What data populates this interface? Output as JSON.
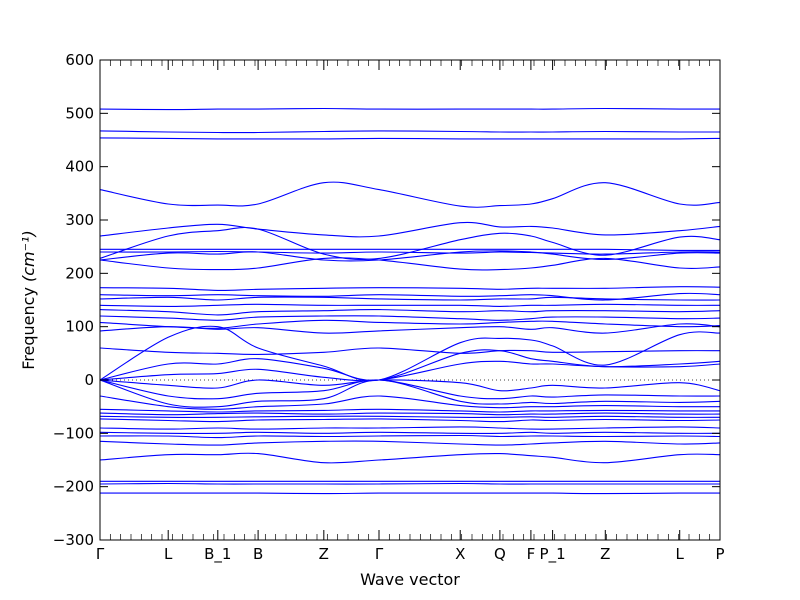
{
  "chart_data": {
    "type": "line",
    "xlabel": "Wave vector",
    "ylabel": "Frequency",
    "ylabel_unit": "(cm⁻¹)",
    "ylim": [
      -300,
      600
    ],
    "yticks": [
      -300,
      -200,
      -100,
      0,
      100,
      200,
      300,
      400,
      500,
      600
    ],
    "xlim": [
      0,
      1
    ],
    "x_ticks": [
      {
        "label": "Γ",
        "pos": 0.0
      },
      {
        "label": "L",
        "pos": 0.11
      },
      {
        "label": "B_1",
        "pos": 0.19
      },
      {
        "label": "B",
        "pos": 0.255
      },
      {
        "label": "Z",
        "pos": 0.361
      },
      {
        "label": "Γ",
        "pos": 0.45
      },
      {
        "label": "X",
        "pos": 0.581
      },
      {
        "label": "Q",
        "pos": 0.645
      },
      {
        "label": "F",
        "pos": 0.695
      },
      {
        "label": "P_1",
        "pos": 0.73
      },
      {
        "label": "Z",
        "pos": 0.815
      },
      {
        "label": "L",
        "pos": 0.935
      },
      {
        "label": "P",
        "pos": 1.0
      }
    ],
    "zero_line": "dotted",
    "line_color": "#0000ff",
    "series": [
      {
        "x": [
          0,
          0.11,
          0.19,
          0.255,
          0.361,
          0.45,
          0.581,
          0.645,
          0.695,
          0.73,
          0.815,
          0.935,
          1.0
        ],
        "y": [
          508,
          507,
          508,
          508,
          509,
          508,
          508,
          508,
          508,
          508,
          509,
          508,
          508
        ]
      },
      {
        "x": [
          0,
          0.11,
          0.19,
          0.255,
          0.361,
          0.45,
          0.581,
          0.645,
          0.695,
          0.73,
          0.815,
          0.935,
          1.0
        ],
        "y": [
          467,
          465,
          464,
          464,
          466,
          467,
          466,
          465,
          465,
          465,
          466,
          465,
          465
        ]
      },
      {
        "x": [
          0,
          0.11,
          0.19,
          0.255,
          0.361,
          0.45,
          0.581,
          0.645,
          0.695,
          0.73,
          0.815,
          0.935,
          1.0
        ],
        "y": [
          454,
          453,
          452,
          452,
          452,
          453,
          452,
          452,
          452,
          452,
          452,
          452,
          453
        ]
      },
      {
        "x": [
          0,
          0.11,
          0.19,
          0.255,
          0.361,
          0.45,
          0.581,
          0.645,
          0.695,
          0.73,
          0.815,
          0.935,
          1.0
        ],
        "y": [
          357,
          330,
          328,
          330,
          370,
          357,
          326,
          327,
          330,
          340,
          370,
          330,
          333
        ]
      },
      {
        "x": [
          0,
          0.11,
          0.19,
          0.255,
          0.361,
          0.45,
          0.581,
          0.645,
          0.695,
          0.73,
          0.815,
          0.935,
          1.0
        ],
        "y": [
          270,
          285,
          292,
          283,
          272,
          270,
          295,
          287,
          288,
          285,
          272,
          280,
          288
        ]
      },
      {
        "x": [
          0,
          0.11,
          0.19,
          0.255,
          0.361,
          0.45,
          0.581,
          0.645,
          0.695,
          0.73,
          0.815,
          0.935,
          1.0
        ],
        "y": [
          228,
          270,
          280,
          283,
          236,
          228,
          263,
          275,
          270,
          258,
          234,
          268,
          263
        ]
      },
      {
        "x": [
          0,
          0.11,
          0.19,
          0.255,
          0.361,
          0.45,
          0.581,
          0.645,
          0.695,
          0.73,
          0.815,
          0.935,
          1.0
        ],
        "y": [
          245,
          245,
          245,
          245,
          245,
          245,
          245,
          245,
          245,
          245,
          245,
          243,
          243
        ]
      },
      {
        "x": [
          0,
          0.11,
          0.19,
          0.255,
          0.361,
          0.45,
          0.581,
          0.645,
          0.695,
          0.73,
          0.815,
          0.935,
          1.0
        ],
        "y": [
          240,
          240,
          241,
          240,
          238,
          240,
          238,
          240,
          239,
          238,
          236,
          240,
          240
        ]
      },
      {
        "x": [
          0,
          0.11,
          0.19,
          0.255,
          0.361,
          0.45,
          0.581,
          0.645,
          0.695,
          0.73,
          0.815,
          0.935,
          1.0
        ],
        "y": [
          225,
          238,
          236,
          240,
          225,
          225,
          240,
          242,
          240,
          236,
          226,
          238,
          238
        ]
      },
      {
        "x": [
          0,
          0.11,
          0.19,
          0.255,
          0.361,
          0.45,
          0.581,
          0.645,
          0.695,
          0.73,
          0.815,
          0.935,
          1.0
        ],
        "y": [
          225,
          210,
          207,
          210,
          228,
          225,
          208,
          207,
          210,
          215,
          228,
          210,
          212
        ]
      },
      {
        "x": [
          0,
          0.11,
          0.19,
          0.255,
          0.361,
          0.45,
          0.581,
          0.645,
          0.695,
          0.73,
          0.815,
          0.935,
          1.0
        ],
        "y": [
          173,
          172,
          168,
          170,
          172,
          173,
          172,
          170,
          172,
          172,
          172,
          175,
          174
        ]
      },
      {
        "x": [
          0,
          0.11,
          0.19,
          0.255,
          0.361,
          0.45,
          0.581,
          0.645,
          0.695,
          0.73,
          0.815,
          0.935,
          1.0
        ],
        "y": [
          160,
          158,
          160,
          158,
          157,
          160,
          157,
          158,
          160,
          158,
          150,
          162,
          160
        ]
      },
      {
        "x": [
          0,
          0.11,
          0.19,
          0.255,
          0.361,
          0.45,
          0.581,
          0.645,
          0.695,
          0.73,
          0.815,
          0.935,
          1.0
        ],
        "y": [
          152,
          155,
          150,
          155,
          155,
          152,
          150,
          152,
          152,
          155,
          152,
          150,
          150
        ]
      },
      {
        "x": [
          0,
          0.11,
          0.19,
          0.255,
          0.361,
          0.45,
          0.581,
          0.645,
          0.695,
          0.73,
          0.815,
          0.935,
          1.0
        ],
        "y": [
          140,
          138,
          140,
          142,
          140,
          140,
          140,
          138,
          140,
          140,
          142,
          140,
          140
        ]
      },
      {
        "x": [
          0,
          0.11,
          0.19,
          0.255,
          0.361,
          0.45,
          0.581,
          0.645,
          0.695,
          0.73,
          0.815,
          0.935,
          1.0
        ],
        "y": [
          132,
          128,
          122,
          128,
          130,
          132,
          128,
          130,
          128,
          130,
          130,
          128,
          130
        ]
      },
      {
        "x": [
          0,
          0.11,
          0.19,
          0.255,
          0.361,
          0.45,
          0.581,
          0.645,
          0.695,
          0.73,
          0.815,
          0.935,
          1.0
        ],
        "y": [
          120,
          116,
          112,
          118,
          120,
          120,
          115,
          112,
          115,
          118,
          118,
          115,
          116
        ]
      },
      {
        "x": [
          0,
          0.11,
          0.19,
          0.255,
          0.361,
          0.45,
          0.581,
          0.645,
          0.695,
          0.73,
          0.815,
          0.935,
          1.0
        ],
        "y": [
          108,
          100,
          97,
          105,
          112,
          108,
          105,
          108,
          110,
          110,
          105,
          100,
          102
        ]
      },
      {
        "x": [
          0,
          0.11,
          0.19,
          0.255,
          0.361,
          0.45,
          0.581,
          0.645,
          0.695,
          0.73,
          0.815,
          0.935,
          1.0
        ],
        "y": [
          92,
          100,
          95,
          98,
          88,
          92,
          98,
          100,
          95,
          98,
          88,
          105,
          100
        ]
      },
      {
        "x": [
          0,
          0.11,
          0.19,
          0.255,
          0.361,
          0.45,
          0.581,
          0.645,
          0.695,
          0.73,
          0.815,
          0.935,
          1.0
        ],
        "y": [
          60,
          52,
          50,
          48,
          52,
          60,
          50,
          55,
          55,
          52,
          53,
          55,
          55
        ]
      },
      {
        "x": [
          0,
          0.11,
          0.19,
          0.255,
          0.361,
          0.45,
          0.581,
          0.645,
          0.695,
          0.73,
          0.815,
          0.935,
          1.0
        ],
        "y": [
          0,
          80,
          100,
          60,
          26,
          0,
          70,
          78,
          75,
          64,
          28,
          85,
          88
        ]
      },
      {
        "x": [
          0,
          0.11,
          0.19,
          0.255,
          0.361,
          0.45,
          0.581,
          0.645,
          0.695,
          0.73,
          0.815,
          0.935,
          1.0
        ],
        "y": [
          0,
          30,
          30,
          40,
          22,
          0,
          50,
          55,
          40,
          35,
          25,
          30,
          35
        ]
      },
      {
        "x": [
          0,
          0.11,
          0.19,
          0.255,
          0.361,
          0.45,
          0.581,
          0.645,
          0.695,
          0.73,
          0.815,
          0.935,
          1.0
        ],
        "y": [
          0,
          10,
          12,
          20,
          5,
          0,
          30,
          35,
          30,
          30,
          25,
          25,
          30
        ]
      },
      {
        "x": [
          0,
          0.11,
          0.19,
          0.255,
          0.361,
          0.45,
          0.581,
          0.645,
          0.695,
          0.73,
          0.815,
          0.935,
          1.0
        ],
        "y": [
          0,
          -10,
          -15,
          0,
          -10,
          0,
          -5,
          -20,
          -15,
          -10,
          -15,
          -5,
          -20
        ]
      },
      {
        "x": [
          0,
          0.11,
          0.19,
          0.255,
          0.361,
          0.45,
          0.581,
          0.645,
          0.695,
          0.73,
          0.815,
          0.935,
          1.0
        ],
        "y": [
          0,
          -30,
          -35,
          -25,
          -20,
          0,
          -30,
          -35,
          -30,
          -32,
          -28,
          -30,
          -30
        ]
      },
      {
        "x": [
          0,
          0.11,
          0.19,
          0.255,
          0.361,
          0.45,
          0.581,
          0.645,
          0.695,
          0.73,
          0.815,
          0.935,
          1.0
        ],
        "y": [
          0,
          -45,
          -50,
          -40,
          -35,
          0,
          -40,
          -45,
          -42,
          -44,
          -40,
          -42,
          -40
        ]
      },
      {
        "x": [
          0,
          0.11,
          0.19,
          0.255,
          0.361,
          0.45,
          0.581,
          0.645,
          0.695,
          0.73,
          0.815,
          0.935,
          1.0
        ],
        "y": [
          -30,
          -50,
          -55,
          -50,
          -45,
          -30,
          -48,
          -52,
          -50,
          -50,
          -48,
          -50,
          -50
        ]
      },
      {
        "x": [
          0,
          0.11,
          0.19,
          0.255,
          0.361,
          0.45,
          0.581,
          0.645,
          0.695,
          0.73,
          0.815,
          0.935,
          1.0
        ],
        "y": [
          -55,
          -58,
          -60,
          -58,
          -57,
          -55,
          -58,
          -60,
          -58,
          -58,
          -57,
          -58,
          -58
        ]
      },
      {
        "x": [
          0,
          0.11,
          0.19,
          0.255,
          0.361,
          0.45,
          0.581,
          0.645,
          0.695,
          0.73,
          0.815,
          0.935,
          1.0
        ],
        "y": [
          -62,
          -65,
          -63,
          -62,
          -64,
          -62,
          -63,
          -65,
          -64,
          -64,
          -62,
          -64,
          -64
        ]
      },
      {
        "x": [
          0,
          0.11,
          0.19,
          0.255,
          0.361,
          0.45,
          0.581,
          0.645,
          0.695,
          0.73,
          0.815,
          0.935,
          1.0
        ],
        "y": [
          -68,
          -70,
          -70,
          -69,
          -68,
          -68,
          -70,
          -70,
          -69,
          -70,
          -68,
          -70,
          -70
        ]
      },
      {
        "x": [
          0,
          0.11,
          0.19,
          0.255,
          0.361,
          0.45,
          0.581,
          0.645,
          0.695,
          0.73,
          0.815,
          0.935,
          1.0
        ],
        "y": [
          -73,
          -76,
          -78,
          -75,
          -74,
          -73,
          -76,
          -78,
          -75,
          -76,
          -74,
          -76,
          -75
        ]
      },
      {
        "x": [
          0,
          0.11,
          0.19,
          0.255,
          0.361,
          0.45,
          0.581,
          0.645,
          0.695,
          0.73,
          0.815,
          0.935,
          1.0
        ],
        "y": [
          -90,
          -92,
          -90,
          -92,
          -90,
          -90,
          -88,
          -90,
          -92,
          -92,
          -90,
          -88,
          -90
        ]
      },
      {
        "x": [
          0,
          0.11,
          0.19,
          0.255,
          0.361,
          0.45,
          0.581,
          0.645,
          0.695,
          0.73,
          0.815,
          0.935,
          1.0
        ],
        "y": [
          -98,
          -100,
          -100,
          -98,
          -100,
          -98,
          -100,
          -100,
          -98,
          -100,
          -98,
          -100,
          -100
        ]
      },
      {
        "x": [
          0,
          0.11,
          0.19,
          0.255,
          0.361,
          0.45,
          0.581,
          0.645,
          0.695,
          0.73,
          0.815,
          0.935,
          1.0
        ],
        "y": [
          -105,
          -105,
          -108,
          -105,
          -106,
          -105,
          -104,
          -106,
          -105,
          -105,
          -106,
          -105,
          -106
        ]
      },
      {
        "x": [
          0,
          0.11,
          0.19,
          0.255,
          0.361,
          0.45,
          0.581,
          0.645,
          0.695,
          0.73,
          0.815,
          0.935,
          1.0
        ],
        "y": [
          -115,
          -120,
          -122,
          -118,
          -115,
          -115,
          -120,
          -122,
          -120,
          -118,
          -115,
          -120,
          -118
        ]
      },
      {
        "x": [
          0,
          0.11,
          0.19,
          0.255,
          0.361,
          0.45,
          0.581,
          0.645,
          0.695,
          0.73,
          0.815,
          0.935,
          1.0
        ],
        "y": [
          -150,
          -140,
          -140,
          -138,
          -155,
          -150,
          -140,
          -138,
          -142,
          -145,
          -155,
          -140,
          -140
        ]
      },
      {
        "x": [
          0,
          0.11,
          0.19,
          0.255,
          0.361,
          0.45,
          0.581,
          0.645,
          0.695,
          0.73,
          0.815,
          0.935,
          1.0
        ],
        "y": [
          -190,
          -190,
          -190,
          -190,
          -190,
          -190,
          -190,
          -190,
          -190,
          -190,
          -190,
          -190,
          -190
        ]
      },
      {
        "x": [
          0,
          0.11,
          0.19,
          0.255,
          0.361,
          0.45,
          0.581,
          0.645,
          0.695,
          0.73,
          0.815,
          0.935,
          1.0
        ],
        "y": [
          -195,
          -194,
          -195,
          -195,
          -195,
          -195,
          -194,
          -195,
          -195,
          -195,
          -195,
          -195,
          -195
        ]
      },
      {
        "x": [
          0,
          0.11,
          0.19,
          0.255,
          0.361,
          0.45,
          0.581,
          0.645,
          0.695,
          0.73,
          0.815,
          0.935,
          1.0
        ],
        "y": [
          -212,
          -212,
          -212,
          -212,
          -213,
          -212,
          -212,
          -212,
          -212,
          -212,
          -213,
          -212,
          -212
        ]
      }
    ]
  }
}
